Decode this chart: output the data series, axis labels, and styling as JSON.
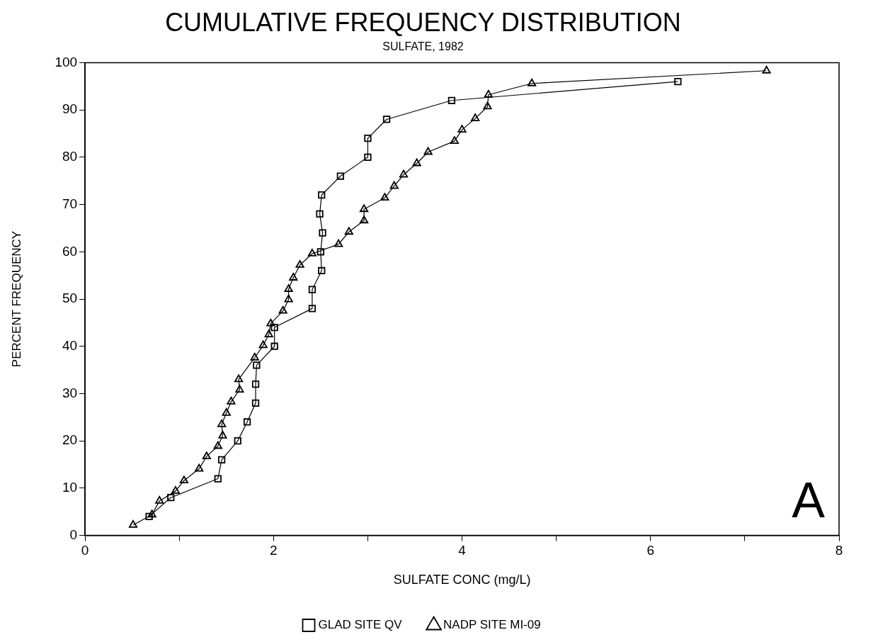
{
  "chart_data": {
    "type": "line",
    "title": "CUMULATIVE FREQUENCY DISTRIBUTION",
    "subtitle": "SULFATE, 1982",
    "xlabel": "SULFATE CONC (mg/L)",
    "ylabel": "PERCENT FREQUENCY",
    "annotations": [
      "A"
    ],
    "xlim": [
      0,
      8
    ],
    "xticks": [
      0,
      {
        "value": 1,
        "label": null
      },
      2,
      {
        "value": 3,
        "label": null
      },
      4,
      {
        "value": 5,
        "label": null
      },
      6,
      {
        "value": 7,
        "label": null
      },
      8
    ],
    "ylim": [
      0,
      100
    ],
    "yticks": [
      0,
      10,
      20,
      30,
      40,
      50,
      60,
      70,
      80,
      90,
      100
    ],
    "grid": false,
    "legend": "bottom",
    "line_style": "solid",
    "series": [
      {
        "name": "GLAD SITE QV",
        "color": "#000000",
        "marker": "square",
        "x": [
          0.68,
          0.91,
          1.41,
          1.45,
          1.62,
          1.72,
          1.81,
          1.81,
          1.82,
          2.01,
          2.01,
          2.41,
          2.41,
          2.51,
          2.5,
          2.52,
          2.49,
          2.51,
          2.71,
          3.0,
          3.0,
          3.2,
          3.89,
          6.29
        ],
        "values": [
          4,
          8,
          12,
          16,
          20,
          24,
          28,
          32,
          36,
          40,
          44,
          48,
          52,
          56,
          60,
          64,
          68,
          72,
          76,
          80,
          84,
          88,
          92,
          96
        ]
      },
      {
        "name": "NADP SITE MI-09",
        "color": "#000000",
        "marker": "triangle",
        "x": [
          0.51,
          0.71,
          0.79,
          0.96,
          1.05,
          1.21,
          1.29,
          1.41,
          1.46,
          1.45,
          1.5,
          1.55,
          1.64,
          1.63,
          1.8,
          1.89,
          1.95,
          1.97,
          2.1,
          2.16,
          2.16,
          2.21,
          2.28,
          2.41,
          2.69,
          2.8,
          2.96,
          2.96,
          3.18,
          3.28,
          3.38,
          3.52,
          3.64,
          3.92,
          4.0,
          4.14,
          4.27,
          4.28,
          4.74,
          7.23
        ],
        "values": [
          2.2,
          4.4,
          7.3,
          9.4,
          11.6,
          14.1,
          16.7,
          18.9,
          21.1,
          23.5,
          25.9,
          28.3,
          30.8,
          33.0,
          37.6,
          40.2,
          42.5,
          44.8,
          47.5,
          49.9,
          52.1,
          54.5,
          57.2,
          59.6,
          61.6,
          64.2,
          66.6,
          69.0,
          71.4,
          73.9,
          76.3,
          78.7,
          81.1,
          83.4,
          85.8,
          88.2,
          90.7,
          93.2,
          95.6,
          98.3
        ]
      }
    ]
  }
}
